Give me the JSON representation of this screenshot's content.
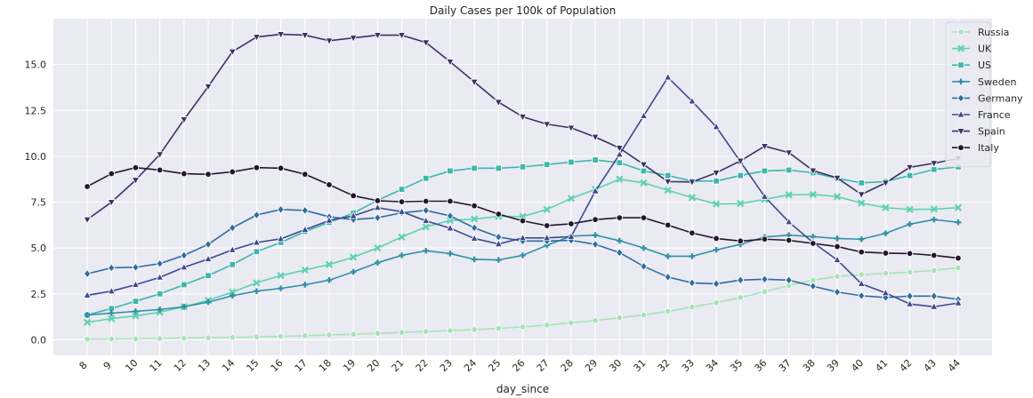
{
  "chart_data": {
    "type": "line",
    "title": "Daily Cases per 100k of Population",
    "xlabel": "day_since",
    "ylabel": "",
    "x": [
      8,
      9,
      10,
      11,
      12,
      13,
      14,
      15,
      16,
      17,
      18,
      19,
      20,
      21,
      22,
      23,
      24,
      25,
      26,
      27,
      28,
      29,
      30,
      31,
      32,
      33,
      34,
      35,
      36,
      37,
      38,
      39,
      40,
      41,
      42,
      43,
      44
    ],
    "ylim": [
      -0.85,
      17.5
    ],
    "yticks": [
      0.0,
      2.5,
      5.0,
      7.5,
      10.0,
      12.5,
      15.0
    ],
    "ytick_labels": [
      "0.0",
      "2.5",
      "5.0",
      "7.5",
      "10.0",
      "12.5",
      "15.0"
    ],
    "grid": true,
    "legend_position": "top-right",
    "series": [
      {
        "name": "Russia",
        "color": "#a9e3b7",
        "marker": "circle",
        "values": [
          0.03,
          0.04,
          0.05,
          0.07,
          0.09,
          0.11,
          0.13,
          0.16,
          0.19,
          0.22,
          0.26,
          0.3,
          0.35,
          0.4,
          0.45,
          0.5,
          0.55,
          0.62,
          0.7,
          0.8,
          0.92,
          1.05,
          1.2,
          1.35,
          1.55,
          1.78,
          2.02,
          2.3,
          2.62,
          2.95,
          3.25,
          3.45,
          3.55,
          3.62,
          3.68,
          3.78,
          3.92
        ]
      },
      {
        "name": "UK",
        "color": "#5fd2b1",
        "marker": "x",
        "values": [
          0.95,
          1.15,
          1.3,
          1.5,
          1.8,
          2.15,
          2.6,
          3.1,
          3.5,
          3.8,
          4.1,
          4.5,
          5.0,
          5.6,
          6.15,
          6.5,
          6.58,
          6.72,
          6.72,
          7.1,
          7.7,
          8.2,
          8.75,
          8.55,
          8.15,
          7.75,
          7.4,
          7.42,
          7.65,
          7.9,
          7.92,
          7.8,
          7.45,
          7.2,
          7.1,
          7.12,
          7.2
        ]
      },
      {
        "name": "US",
        "color": "#3fb6ad",
        "marker": "square",
        "values": [
          1.35,
          1.7,
          2.1,
          2.5,
          3.0,
          3.5,
          4.1,
          4.8,
          5.3,
          5.9,
          6.4,
          6.9,
          7.6,
          8.2,
          8.8,
          9.2,
          9.35,
          9.35,
          9.42,
          9.55,
          9.68,
          9.8,
          9.65,
          9.2,
          8.95,
          8.65,
          8.65,
          8.95,
          9.2,
          9.25,
          9.1,
          8.8,
          8.55,
          8.62,
          8.95,
          9.28,
          9.42
        ]
      },
      {
        "name": "Sweden",
        "color": "#3190a6",
        "marker": "plus",
        "values": [
          1.35,
          1.45,
          1.55,
          1.65,
          1.8,
          2.05,
          2.4,
          2.65,
          2.8,
          3.0,
          3.25,
          3.7,
          4.2,
          4.6,
          4.85,
          4.7,
          4.38,
          4.35,
          4.6,
          5.15,
          5.65,
          5.7,
          5.4,
          5.0,
          4.55,
          4.55,
          4.9,
          5.2,
          5.6,
          5.7,
          5.62,
          5.52,
          5.48,
          5.8,
          6.3,
          6.55,
          6.4
        ]
      },
      {
        "name": "Germany",
        "color": "#2f6d9f",
        "marker": "diamond",
        "values": [
          3.6,
          3.92,
          3.95,
          4.15,
          4.6,
          5.2,
          6.1,
          6.8,
          7.1,
          7.05,
          6.7,
          6.55,
          6.65,
          6.92,
          7.05,
          6.75,
          6.1,
          5.6,
          5.38,
          5.38,
          5.42,
          5.2,
          4.75,
          4.0,
          3.42,
          3.1,
          3.05,
          3.25,
          3.3,
          3.25,
          2.92,
          2.6,
          2.4,
          2.3,
          2.38,
          2.38,
          2.2
        ]
      },
      {
        "name": "France",
        "color": "#3e4a90",
        "marker": "triangle-up",
        "values": [
          2.42,
          2.65,
          3.0,
          3.4,
          3.95,
          4.4,
          4.9,
          5.3,
          5.5,
          6.0,
          6.5,
          6.75,
          7.2,
          6.98,
          6.48,
          6.08,
          5.52,
          5.22,
          5.55,
          5.55,
          5.62,
          8.1,
          10.1,
          12.2,
          14.3,
          13.0,
          11.6,
          9.7,
          7.8,
          6.42,
          5.3,
          4.35,
          3.05,
          2.55,
          1.95,
          1.8,
          2.0
        ]
      },
      {
        "name": "Spain",
        "color": "#3b3164",
        "marker": "triangle-down",
        "values": [
          6.55,
          7.5,
          8.7,
          10.1,
          12.0,
          13.8,
          15.7,
          16.5,
          16.65,
          16.6,
          16.3,
          16.45,
          16.6,
          16.6,
          16.2,
          15.15,
          14.05,
          12.95,
          12.15,
          11.75,
          11.55,
          11.05,
          10.45,
          9.55,
          8.62,
          8.6,
          9.1,
          9.75,
          10.55,
          10.2,
          9.22,
          8.82,
          7.92,
          8.55,
          9.4,
          9.62,
          9.88
        ]
      },
      {
        "name": "Italy",
        "color": "#23172f",
        "marker": "circle",
        "values": [
          8.35,
          9.05,
          9.38,
          9.25,
          9.05,
          9.02,
          9.15,
          9.38,
          9.35,
          9.02,
          8.45,
          7.85,
          7.58,
          7.52,
          7.55,
          7.55,
          7.3,
          6.85,
          6.48,
          6.22,
          6.32,
          6.55,
          6.65,
          6.65,
          6.25,
          5.82,
          5.52,
          5.38,
          5.48,
          5.42,
          5.25,
          5.08,
          4.78,
          4.72,
          4.7,
          4.6,
          4.45
        ]
      }
    ]
  }
}
